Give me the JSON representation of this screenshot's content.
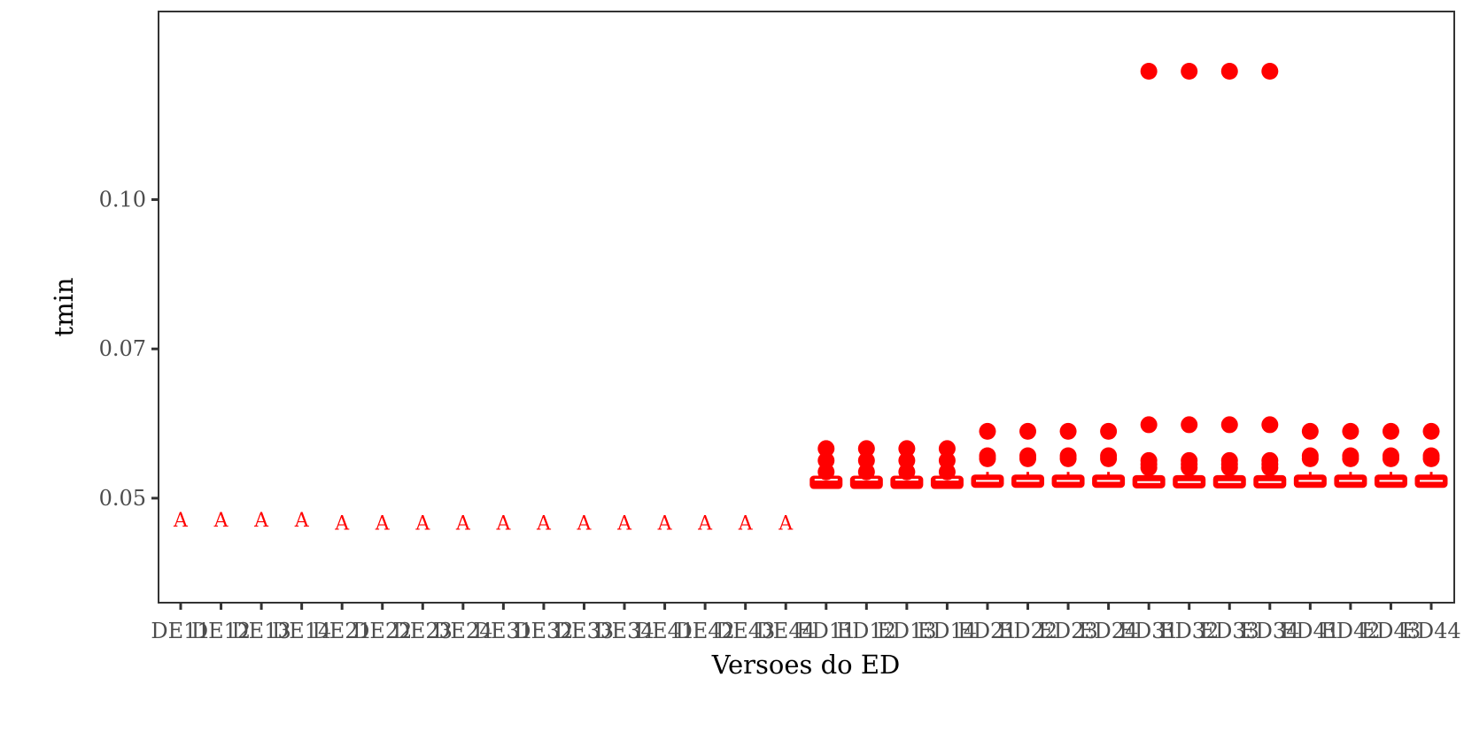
{
  "chart_data": {
    "type": "boxplot",
    "title": "",
    "xlabel": "Versoes do ED",
    "ylabel": "tmin",
    "ylim": [
      0.0325,
      0.1315
    ],
    "yticks": [
      {
        "value": 0.05,
        "label": "0.05"
      },
      {
        "value": 0.075,
        "label": "0.07"
      },
      {
        "value": 0.1,
        "label": "0.10"
      }
    ],
    "grid": false,
    "legend": "none",
    "color": "#ff0000",
    "categories": [
      "DE11",
      "DE12",
      "DE13",
      "DE14",
      "DE21",
      "DE22",
      "DE23",
      "DE24",
      "DE31",
      "DE32",
      "DE33",
      "DE34",
      "DE41",
      "DE42",
      "DE43",
      "DE44",
      "ED11",
      "ED12",
      "ED13",
      "ED14",
      "ED21",
      "ED22",
      "ED23",
      "ED24",
      "ED31",
      "ED32",
      "ED33",
      "ED34",
      "ED41",
      "ED42",
      "ED43",
      "ED44"
    ],
    "letters": [
      {
        "category": "DE11",
        "label": "A",
        "y": 0.0464
      },
      {
        "category": "DE12",
        "label": "A",
        "y": 0.0464
      },
      {
        "category": "DE13",
        "label": "A",
        "y": 0.0464
      },
      {
        "category": "DE14",
        "label": "A",
        "y": 0.0464
      },
      {
        "category": "DE21",
        "label": "A",
        "y": 0.0459
      },
      {
        "category": "DE22",
        "label": "A",
        "y": 0.0459
      },
      {
        "category": "DE23",
        "label": "A",
        "y": 0.0459
      },
      {
        "category": "DE24",
        "label": "A",
        "y": 0.0459
      },
      {
        "category": "DE31",
        "label": "A",
        "y": 0.0459
      },
      {
        "category": "DE32",
        "label": "A",
        "y": 0.0459
      },
      {
        "category": "DE33",
        "label": "A",
        "y": 0.0459
      },
      {
        "category": "DE34",
        "label": "A",
        "y": 0.0459
      },
      {
        "category": "DE41",
        "label": "A",
        "y": 0.0459
      },
      {
        "category": "DE42",
        "label": "A",
        "y": 0.0459
      },
      {
        "category": "DE43",
        "label": "A",
        "y": 0.0459
      },
      {
        "category": "DE44",
        "label": "A",
        "y": 0.0459
      }
    ],
    "boxes": [
      {
        "category": "ED11",
        "whisker_low": 0.0522,
        "q1": 0.0522,
        "median": 0.0531,
        "q3": 0.0531,
        "whisker_high": 0.0531,
        "outliers": [
          0.0544,
          0.0563,
          0.0583
        ]
      },
      {
        "category": "ED12",
        "whisker_low": 0.0522,
        "q1": 0.0522,
        "median": 0.0531,
        "q3": 0.0531,
        "whisker_high": 0.0531,
        "outliers": [
          0.0544,
          0.0563,
          0.0583
        ]
      },
      {
        "category": "ED13",
        "whisker_low": 0.0522,
        "q1": 0.0522,
        "median": 0.0531,
        "q3": 0.0531,
        "whisker_high": 0.0531,
        "outliers": [
          0.0544,
          0.0563,
          0.0583
        ]
      },
      {
        "category": "ED14",
        "whisker_low": 0.0522,
        "q1": 0.0522,
        "median": 0.0531,
        "q3": 0.0531,
        "whisker_high": 0.0531,
        "outliers": [
          0.0544,
          0.0563,
          0.0583
        ]
      },
      {
        "category": "ED21",
        "whisker_low": 0.052,
        "q1": 0.0522,
        "median": 0.0529,
        "q3": 0.0535,
        "whisker_high": 0.0544,
        "outliers": [
          0.0566,
          0.0571,
          0.0612
        ]
      },
      {
        "category": "ED22",
        "whisker_low": 0.052,
        "q1": 0.0522,
        "median": 0.0529,
        "q3": 0.0535,
        "whisker_high": 0.0544,
        "outliers": [
          0.0566,
          0.0571,
          0.0612
        ]
      },
      {
        "category": "ED23",
        "whisker_low": 0.052,
        "q1": 0.0522,
        "median": 0.0529,
        "q3": 0.0535,
        "whisker_high": 0.0544,
        "outliers": [
          0.0566,
          0.0571,
          0.0612
        ]
      },
      {
        "category": "ED24",
        "whisker_low": 0.052,
        "q1": 0.0522,
        "median": 0.0529,
        "q3": 0.0535,
        "whisker_high": 0.0544,
        "outliers": [
          0.0566,
          0.0571,
          0.0612
        ]
      },
      {
        "category": "ED31",
        "whisker_low": 0.0518,
        "q1": 0.052,
        "median": 0.0527,
        "q3": 0.0535,
        "whisker_high": 0.0544,
        "outliers": [
          0.0551,
          0.0557,
          0.0563,
          0.0623,
          0.1215
        ]
      },
      {
        "category": "ED32",
        "whisker_low": 0.0518,
        "q1": 0.052,
        "median": 0.0527,
        "q3": 0.0535,
        "whisker_high": 0.0544,
        "outliers": [
          0.0551,
          0.0557,
          0.0563,
          0.0623,
          0.1215
        ]
      },
      {
        "category": "ED33",
        "whisker_low": 0.0518,
        "q1": 0.052,
        "median": 0.0527,
        "q3": 0.0535,
        "whisker_high": 0.0544,
        "outliers": [
          0.0551,
          0.0557,
          0.0563,
          0.0623,
          0.1215
        ]
      },
      {
        "category": "ED34",
        "whisker_low": 0.0518,
        "q1": 0.052,
        "median": 0.0527,
        "q3": 0.0535,
        "whisker_high": 0.0544,
        "outliers": [
          0.0551,
          0.0557,
          0.0563,
          0.0623,
          0.1215
        ]
      },
      {
        "category": "ED41",
        "whisker_low": 0.052,
        "q1": 0.0522,
        "median": 0.0529,
        "q3": 0.0535,
        "whisker_high": 0.0544,
        "outliers": [
          0.0566,
          0.0571,
          0.0612
        ]
      },
      {
        "category": "ED42",
        "whisker_low": 0.052,
        "q1": 0.0522,
        "median": 0.0529,
        "q3": 0.0535,
        "whisker_high": 0.0544,
        "outliers": [
          0.0566,
          0.0571,
          0.0612
        ]
      },
      {
        "category": "ED43",
        "whisker_low": 0.052,
        "q1": 0.0522,
        "median": 0.0529,
        "q3": 0.0535,
        "whisker_high": 0.0544,
        "outliers": [
          0.0566,
          0.0571,
          0.0612
        ]
      },
      {
        "category": "ED44",
        "whisker_low": 0.052,
        "q1": 0.0522,
        "median": 0.0529,
        "q3": 0.0535,
        "whisker_high": 0.0544,
        "outliers": [
          0.0566,
          0.0571,
          0.0612
        ]
      }
    ]
  }
}
